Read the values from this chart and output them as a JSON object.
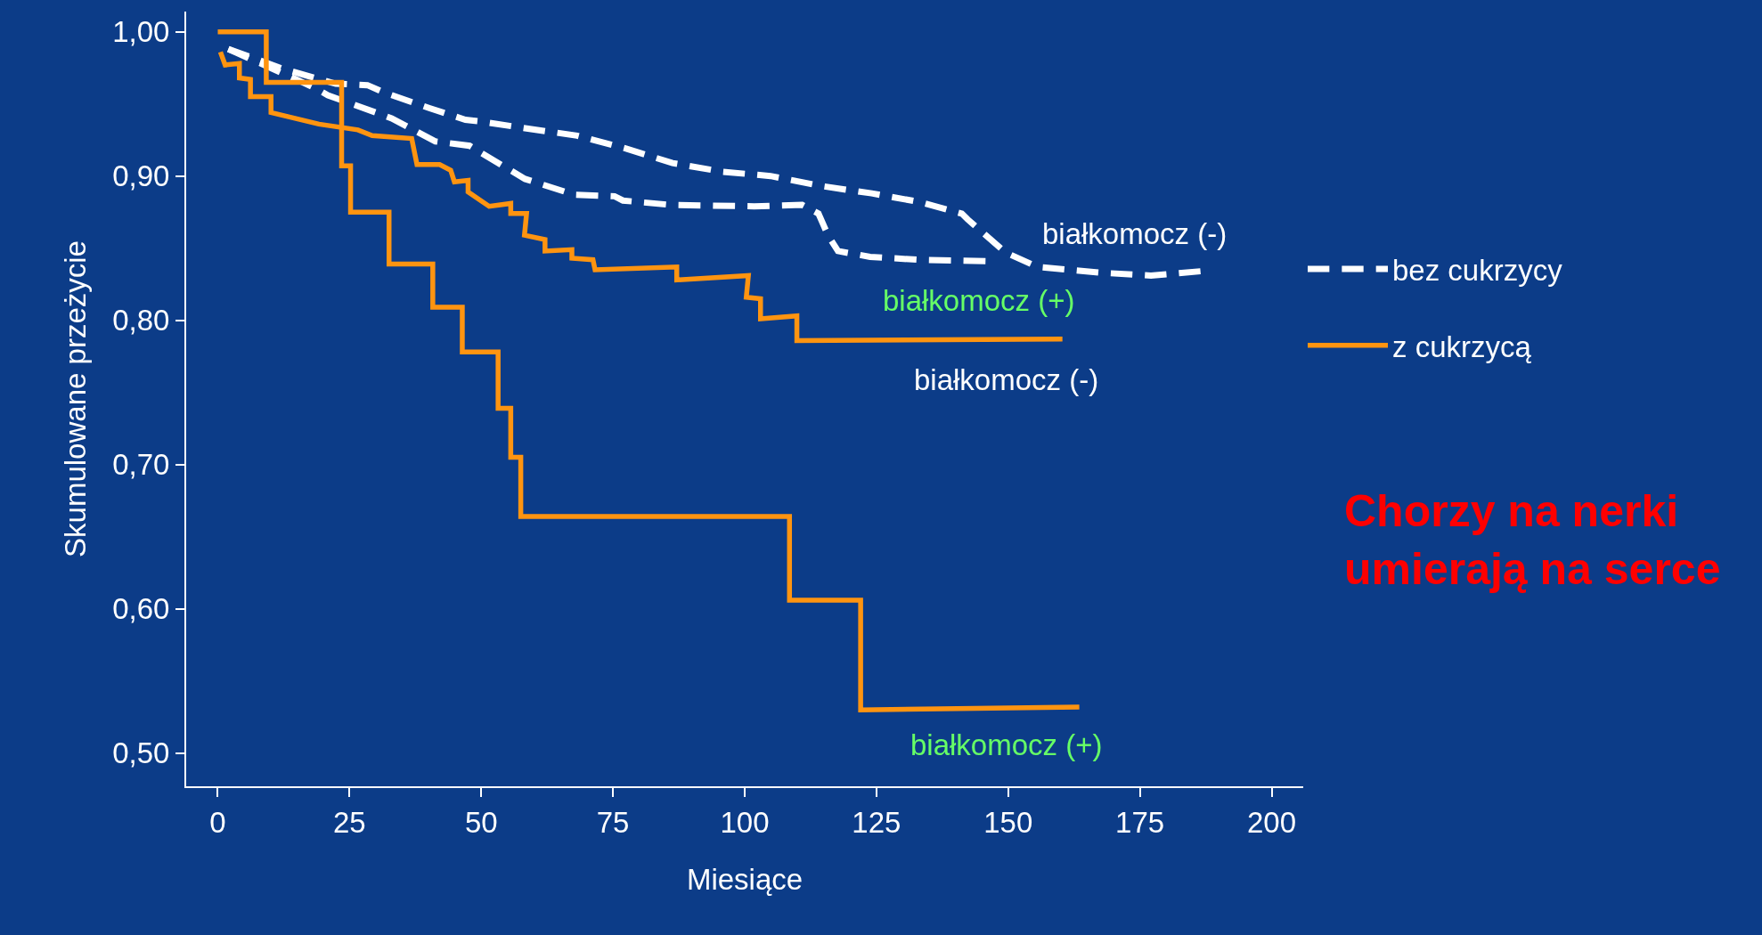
{
  "chart_data": {
    "type": "line",
    "xlabel": "Miesiące",
    "ylabel": "Skumulowane przeżycie",
    "xlim": [
      -6,
      206
    ],
    "ylim": [
      0.477,
      1.014
    ],
    "xticks": [
      0,
      25,
      50,
      75,
      100,
      125,
      150,
      175,
      200
    ],
    "yticks": [
      {
        "value": 0.5,
        "label": "0,50"
      },
      {
        "value": 0.6,
        "label": "0,60"
      },
      {
        "value": 0.7,
        "label": "0,70"
      },
      {
        "value": 0.8,
        "label": "0,80"
      },
      {
        "value": 0.9,
        "label": "0,90"
      },
      {
        "value": 1.0,
        "label": "1,00"
      }
    ],
    "grid": false,
    "legend": "right",
    "marker": "none",
    "series": [
      {
        "name": "bez cukrzycy",
        "color": "#ffffff",
        "line_style": "dashed",
        "x": [
          2,
          12.6,
          22.4,
          28.4,
          31.5,
          40.2,
          47,
          49.6,
          58.6,
          68.2,
          77.5,
          86.3,
          95.7,
          104.9,
          114.7,
          124.1,
          133.2,
          141.2,
          142.3,
          149.5,
          155.6,
          167.6,
          177.1,
          186.5
        ],
        "values": [
          0.988,
          0.974,
          0.964,
          0.963,
          0.958,
          0.947,
          0.939,
          0.938,
          0.933,
          0.928,
          0.919,
          0.909,
          0.903,
          0.9,
          0.893,
          0.888,
          0.882,
          0.874,
          0.87,
          0.847,
          0.837,
          0.833,
          0.831,
          0.834
        ]
      },
      {
        "color": "#ffffff",
        "line_style": "dashed",
        "x": [
          2,
          14.9,
          19,
          20.9,
          23.9,
          30.8,
          33,
          41.3,
          47.8,
          50,
          58.3,
          67.7,
          75.3,
          76.9,
          85.9,
          101.8,
          110.9,
          114,
          115.8,
          117.7,
          123.8,
          132.8,
          145.7
        ],
        "values": [
          0.988,
          0.967,
          0.96,
          0.956,
          0.952,
          0.943,
          0.94,
          0.924,
          0.921,
          0.916,
          0.898,
          0.887,
          0.886,
          0.883,
          0.88,
          0.879,
          0.88,
          0.874,
          0.859,
          0.848,
          0.844,
          0.842,
          0.841
        ]
      },
      {
        "name": "z cukrzycą",
        "color": "#ff9410",
        "line_style": "solid",
        "x": [
          0.5,
          1.4,
          4.1,
          4.1,
          6.2,
          6.2,
          10.1,
          10.1,
          19.2,
          26.6,
          29.3,
          36.8,
          37.8,
          42.1,
          44.2,
          44.9,
          47.5,
          47.5,
          51.5,
          55.6,
          55.6,
          58.6,
          58.2,
          62.1,
          62.1,
          67.2,
          67.2,
          71.2,
          71.6,
          87.1,
          87.1,
          100.7,
          100.3,
          103,
          103,
          109.9,
          109.9,
          160.3
        ],
        "values": [
          0.986,
          0.977,
          0.978,
          0.968,
          0.967,
          0.955,
          0.955,
          0.944,
          0.936,
          0.932,
          0.928,
          0.926,
          0.908,
          0.908,
          0.904,
          0.896,
          0.897,
          0.889,
          0.879,
          0.881,
          0.874,
          0.874,
          0.859,
          0.856,
          0.848,
          0.849,
          0.843,
          0.842,
          0.835,
          0.837,
          0.828,
          0.831,
          0.816,
          0.815,
          0.801,
          0.803,
          0.786,
          0.787
        ]
      },
      {
        "color": "#ff9410",
        "line_style": "solid",
        "x": [
          0,
          9.2,
          9.2,
          23.5,
          23.5,
          25.2,
          25.2,
          32.5,
          32.5,
          40.8,
          40.8,
          46.4,
          46.4,
          53.2,
          53.2,
          55.6,
          55.6,
          57.5,
          57.5,
          108.5,
          108.5,
          122,
          122,
          163.5
        ],
        "values": [
          1.0,
          1.0,
          0.965,
          0.965,
          0.907,
          0.907,
          0.875,
          0.875,
          0.839,
          0.839,
          0.809,
          0.809,
          0.778,
          0.778,
          0.739,
          0.739,
          0.705,
          0.705,
          0.664,
          0.664,
          0.606,
          0.606,
          0.53,
          0.532
        ]
      }
    ],
    "annotations": [
      "białkomocz (-)",
      "białkomocz (+)",
      "białkomocz (-)",
      "białkomocz (+)",
      "Chorzy na nerki\numierają na serce"
    ]
  }
}
